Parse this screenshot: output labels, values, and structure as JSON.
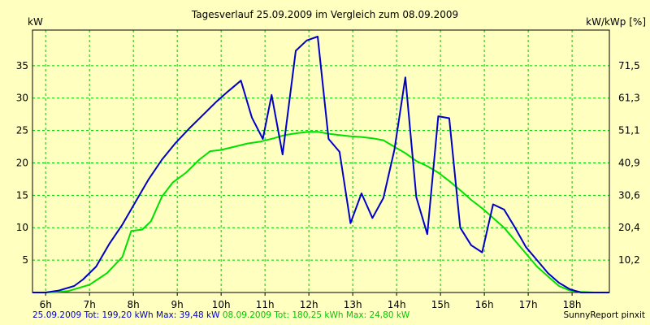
{
  "chart_data": {
    "type": "line",
    "title": "Tagesverlauf 25.09.2009 im Vergleich zum 08.09.2009",
    "ylabel_left": "kW",
    "ylabel_right": "kW/kWp [%]",
    "xlim": [
      5.7,
      18.85
    ],
    "ylim": [
      0,
      40.5
    ],
    "x_ticks": [
      6,
      7,
      8,
      9,
      10,
      11,
      12,
      13,
      14,
      15,
      16,
      17,
      18
    ],
    "x_tick_labels": [
      "6h",
      "7h",
      "8h",
      "9h",
      "10h",
      "11h",
      "12h",
      "13h",
      "14h",
      "15h",
      "16h",
      "17h",
      "18h"
    ],
    "y_ticks_left": [
      5,
      10,
      15,
      20,
      25,
      30,
      35
    ],
    "y_tick_labels_left": [
      "5",
      "10",
      "15",
      "20",
      "25",
      "30",
      "35"
    ],
    "y_tick_labels_right": [
      "10,2",
      "20,4",
      "30,6",
      "40,9",
      "51,1",
      "61,3",
      "71,5"
    ],
    "grid": true,
    "colors": {
      "background": "#ffffc0",
      "grid": "#00c800",
      "series1": "#0000c8",
      "series2": "#00e000"
    },
    "series": [
      {
        "name": "25.09.2009",
        "color": "#0000c8",
        "x": [
          5.7,
          6.0,
          6.3,
          6.65,
          6.85,
          7.15,
          7.45,
          7.75,
          8.05,
          8.35,
          8.65,
          8.95,
          9.3,
          9.6,
          9.9,
          10.15,
          10.45,
          10.7,
          10.95,
          11.15,
          11.4,
          11.7,
          11.95,
          12.2,
          12.45,
          12.7,
          12.95,
          13.2,
          13.45,
          13.7,
          13.95,
          14.2,
          14.45,
          14.7,
          14.95,
          15.2,
          15.45,
          15.7,
          15.95,
          16.2,
          16.45,
          16.7,
          16.95,
          17.2,
          17.45,
          17.7,
          17.95,
          18.2,
          18.5,
          18.85
        ],
        "y": [
          0,
          0,
          0.3,
          1.0,
          2.0,
          4.0,
          7.5,
          10.5,
          14.0,
          17.5,
          20.5,
          23.0,
          25.5,
          27.5,
          29.5,
          31.0,
          32.7,
          27.0,
          23.7,
          30.5,
          21.3,
          37.3,
          38.9,
          39.5,
          23.7,
          21.7,
          10.7,
          15.3,
          11.5,
          14.6,
          22.0,
          33.2,
          14.7,
          9.0,
          27.2,
          26.9,
          10.0,
          7.3,
          6.2,
          13.6,
          12.8,
          10.0,
          7.0,
          5.0,
          3.0,
          1.5,
          0.5,
          0,
          0,
          0
        ]
      },
      {
        "name": "08.09.2009",
        "color": "#00e000",
        "x": [
          5.7,
          6.0,
          6.5,
          7.0,
          7.4,
          7.75,
          7.95,
          8.2,
          8.4,
          8.65,
          8.9,
          9.2,
          9.5,
          9.75,
          10.0,
          10.3,
          10.6,
          10.9,
          11.2,
          11.45,
          11.75,
          12.0,
          12.2,
          12.45,
          12.7,
          12.95,
          13.2,
          13.45,
          13.7,
          13.95,
          14.2,
          14.45,
          14.7,
          14.95,
          15.2,
          15.45,
          15.7,
          15.95,
          16.2,
          16.45,
          16.7,
          16.95,
          17.2,
          17.45,
          17.7,
          17.95,
          18.2,
          18.5,
          18.85
        ],
        "y": [
          0,
          0,
          0.2,
          1.2,
          3.0,
          5.5,
          9.5,
          9.7,
          11.0,
          14.8,
          17.0,
          18.5,
          20.5,
          21.8,
          22.0,
          22.5,
          23.0,
          23.3,
          23.8,
          24.3,
          24.6,
          24.8,
          24.8,
          24.5,
          24.3,
          24.1,
          24.0,
          23.8,
          23.5,
          22.5,
          21.5,
          20.3,
          19.5,
          18.5,
          17.2,
          15.8,
          14.3,
          13.0,
          11.5,
          10.0,
          8.0,
          6.0,
          4.0,
          2.5,
          1.0,
          0.3,
          0.1,
          0,
          0
        ]
      }
    ]
  },
  "footer": {
    "series1_text": "25.09.2009 Tot: 199,20 kWh Max: 39,48 kW",
    "series2_text": "08.09.2009 Tot: 180,25 kWh Max: 24,80 kW",
    "credit": "SunnyReport pinxit"
  }
}
